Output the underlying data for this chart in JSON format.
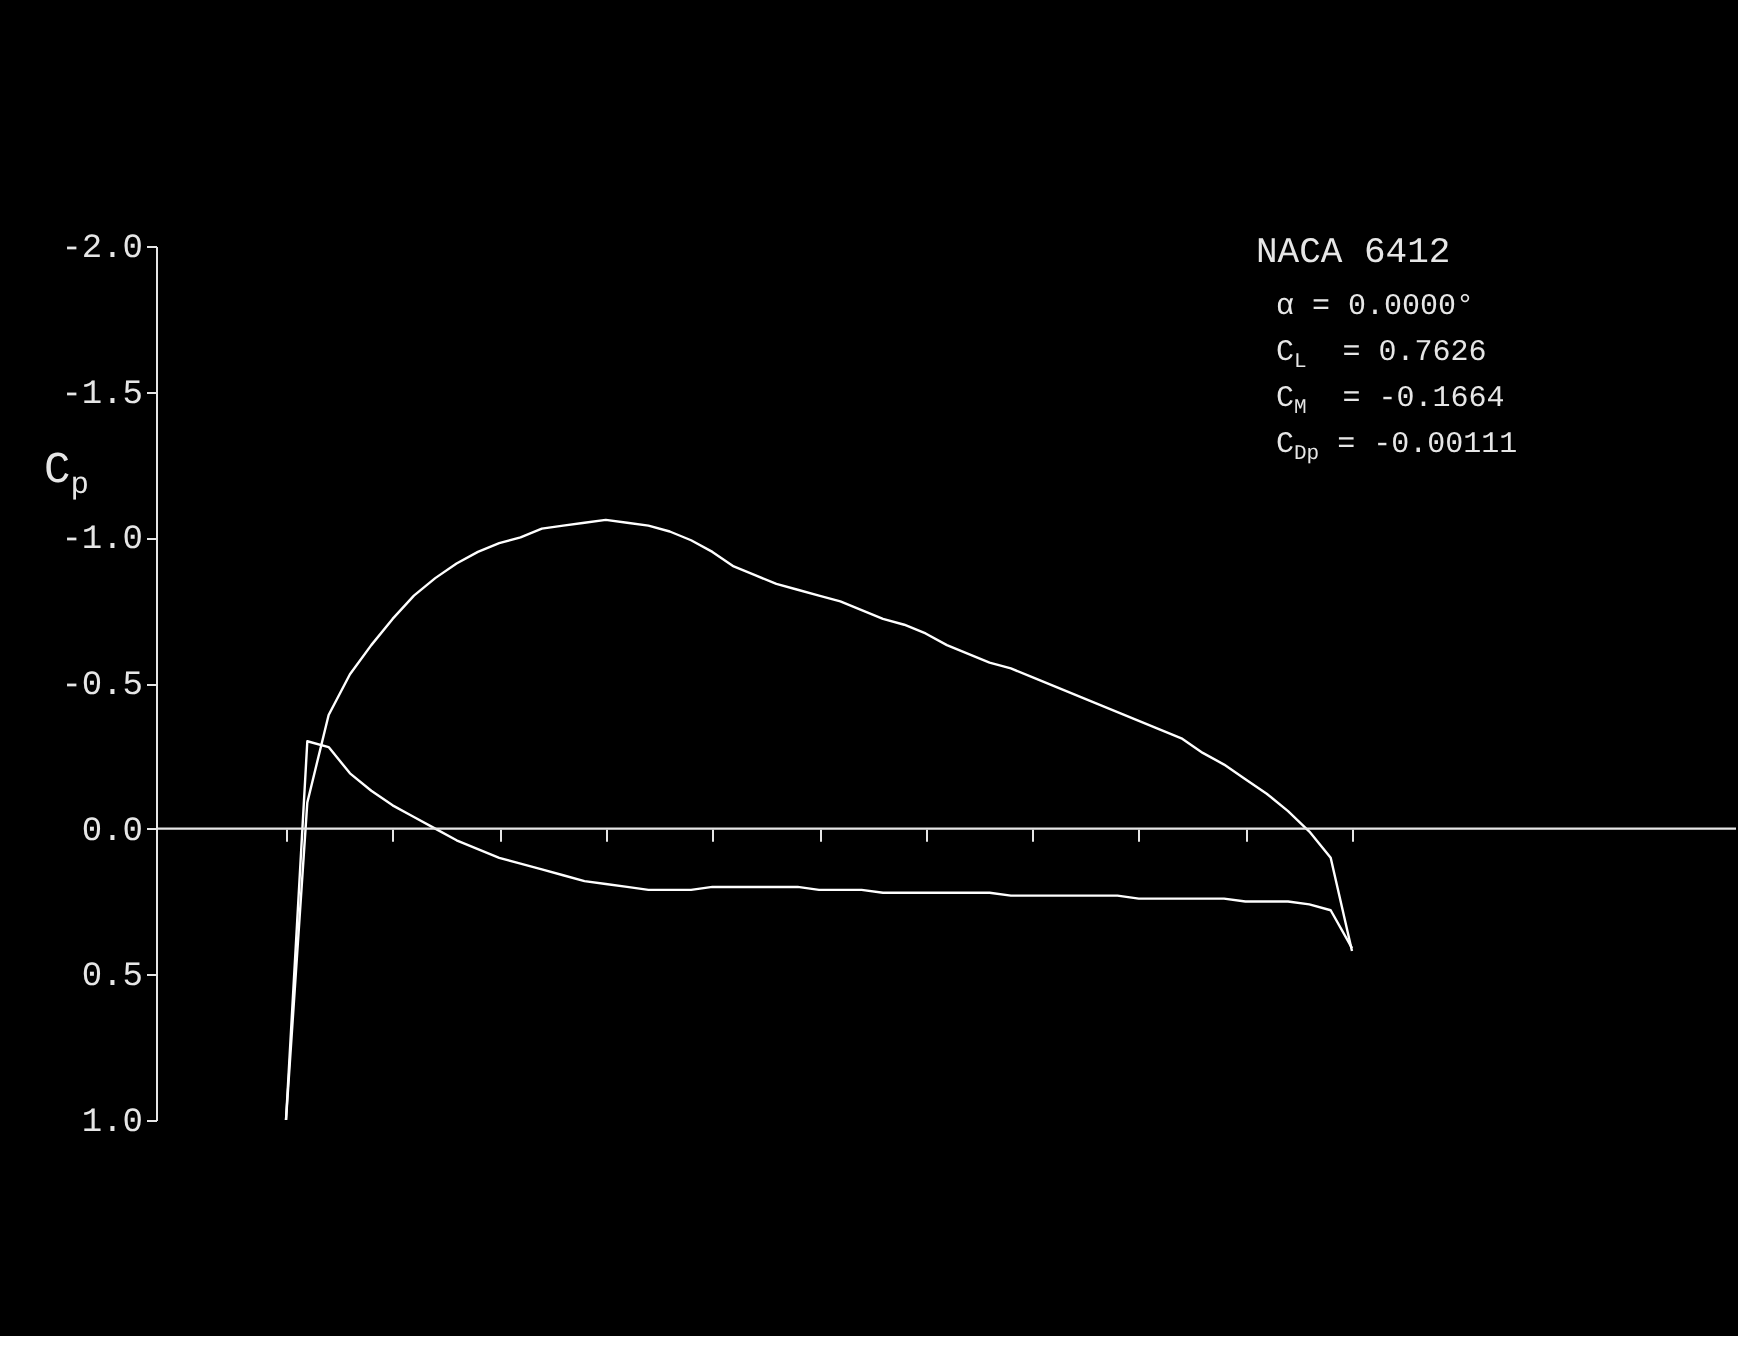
{
  "chart_data": {
    "type": "line",
    "title": "NACA 6412",
    "ylabel": "C$_{p}$",
    "annotations": [
      "α  = 0.0000°",
      "C$_{L}$  = 0.7626",
      "C$_{M}$  = -0.1664",
      "C$_{Dp}$ = -0.00111"
    ],
    "categories": [
      null,
      null,
      null,
      null,
      null,
      null,
      null,
      null,
      null,
      null,
      null,
      null,
      null,
      null,
      null,
      null,
      null,
      null,
      null,
      null,
      null,
      null,
      null,
      null,
      null,
      null,
      null,
      null,
      null,
      null,
      null,
      null,
      null,
      null,
      null,
      null,
      null,
      null,
      null,
      null,
      null,
      null,
      null,
      null,
      null,
      null,
      null,
      null,
      null,
      null,
      null
    ],
    "ylim": [
      1.0,
      -2.0
    ],
    "yticks": [
      {
        "value": -2,
        "label": "-2.0"
      },
      {
        "value": -1.5,
        "label": "-1.5"
      },
      {
        "value": -1,
        "label": "-1.0"
      },
      {
        "value": -0.5,
        "label": "-0.5"
      },
      {
        "value": 0,
        "label": "0.0"
      },
      {
        "value": 0.5,
        "label": "0.5"
      },
      {
        "value": 1,
        "label": "1.0"
      }
    ],
    "tick_labels": "y",
    "grid": false,
    "ref_lines": [
      {
        "axis": "y",
        "value": 0
      }
    ],
    "series": [
      {
        "color": "#ffffff",
        "values": [
          1.0,
          -0.09,
          -0.39,
          -0.53,
          -0.63,
          -0.72,
          -0.8,
          -0.86,
          -0.91,
          -0.95,
          -0.98,
          -1.0,
          -1.03,
          -1.04,
          -1.05,
          -1.06,
          -1.05,
          -1.04,
          -1.02,
          -0.99,
          -0.95,
          -0.9,
          -0.87,
          -0.84,
          -0.82,
          -0.8,
          -0.78,
          -0.75,
          -0.72,
          -0.7,
          -0.67,
          -0.63,
          -0.6,
          -0.57,
          -0.55,
          -0.52,
          -0.49,
          -0.46,
          -0.43,
          -0.4,
          -0.37,
          -0.34,
          -0.31,
          -0.26,
          -0.22,
          -0.17,
          -0.12,
          -0.06,
          0.01,
          0.1,
          0.42
        ]
      },
      {
        "color": "#ffffff",
        "values": [
          1.0,
          -0.3,
          -0.28,
          -0.19,
          -0.13,
          -0.08,
          -0.04,
          0.0,
          0.04,
          0.07,
          0.1,
          0.12,
          0.14,
          0.16,
          0.18,
          0.19,
          0.2,
          0.21,
          0.21,
          0.21,
          0.2,
          0.2,
          0.2,
          0.2,
          0.2,
          0.21,
          0.21,
          0.21,
          0.22,
          0.22,
          0.22,
          0.22,
          0.22,
          0.22,
          0.23,
          0.23,
          0.23,
          0.23,
          0.23,
          0.23,
          0.24,
          0.24,
          0.24,
          0.24,
          0.24,
          0.25,
          0.25,
          0.25,
          0.26,
          0.28,
          0.41
        ]
      }
    ]
  }
}
